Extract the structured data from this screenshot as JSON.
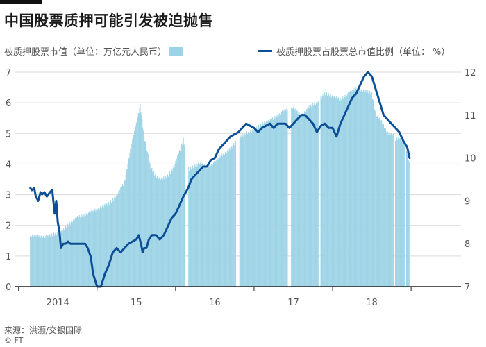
{
  "header": {
    "title": "中国股票质押可能引发被迫抛售"
  },
  "legend": {
    "bars_label": "被质押股票市值（单位：万亿元人民币）",
    "line_label": "被质押股票占股票总市值比例（单位：",
    "line_unit": "%）"
  },
  "footer": {
    "source": "来源：洪灏/交银国际",
    "credit": "© FT"
  },
  "colors": {
    "bar": "#9dd3e6",
    "line": "#0d4f96",
    "grid": "#d9d9d9",
    "axis": "#222222"
  },
  "chart_data": {
    "type": "bar+line",
    "title": "中国股票质押可能引发被迫抛售",
    "x_range": [
      2013.6,
      2018.95
    ],
    "x_ticks": [
      {
        "label": "2014",
        "at": 2014.0
      },
      {
        "label": "15",
        "at": 2015.0
      },
      {
        "label": "16",
        "at": 2016.0
      },
      {
        "label": "17",
        "at": 2017.0
      },
      {
        "label": "18",
        "at": 2018.0
      }
    ],
    "x_minor_ticks": [
      2013.5,
      2014.5,
      2015.5,
      2016.5,
      2017.5,
      2018.5
    ],
    "y_left": {
      "label": "被质押股票市值（单位：万亿元人民币）",
      "range": [
        0,
        7
      ],
      "ticks": [
        0,
        1,
        2,
        3,
        4,
        5,
        6,
        7
      ]
    },
    "y_right": {
      "label": "被质押股票占股票总市值比例（单位：%）",
      "range": [
        7,
        12
      ],
      "ticks": [
        7,
        8,
        9,
        10,
        11,
        12
      ]
    },
    "grid": true,
    "series": [
      {
        "name": "被质押股票市值（单位：万亿元人民币）",
        "type": "bar",
        "axis": "left",
        "points": [
          [
            2013.65,
            1.6
          ],
          [
            2013.75,
            1.65
          ],
          [
            2013.85,
            1.62
          ],
          [
            2013.95,
            1.7
          ],
          [
            2014.05,
            1.8
          ],
          [
            2014.15,
            2.05
          ],
          [
            2014.25,
            2.25
          ],
          [
            2014.35,
            2.35
          ],
          [
            2014.45,
            2.45
          ],
          [
            2014.55,
            2.6
          ],
          [
            2014.65,
            2.7
          ],
          [
            2014.75,
            2.95
          ],
          [
            2014.85,
            3.4
          ],
          [
            2014.92,
            4.4
          ],
          [
            2015.0,
            5.3
          ],
          [
            2015.05,
            5.9
          ],
          [
            2015.1,
            4.9
          ],
          [
            2015.18,
            3.9
          ],
          [
            2015.25,
            3.6
          ],
          [
            2015.32,
            3.5
          ],
          [
            2015.4,
            3.6
          ],
          [
            2015.48,
            3.9
          ],
          [
            2015.55,
            4.4
          ],
          [
            2015.6,
            4.8
          ],
          [
            2015.67,
            3.8
          ],
          [
            2015.72,
            3.9
          ],
          [
            2015.8,
            4.0
          ],
          [
            2015.9,
            3.9
          ],
          [
            2016.0,
            4.05
          ],
          [
            2016.1,
            4.3
          ],
          [
            2016.2,
            4.5
          ],
          [
            2016.3,
            4.8
          ],
          [
            2016.4,
            5.0
          ],
          [
            2016.5,
            5.1
          ],
          [
            2016.6,
            5.3
          ],
          [
            2016.7,
            5.4
          ],
          [
            2016.8,
            5.6
          ],
          [
            2016.9,
            5.75
          ],
          [
            2017.0,
            5.8
          ],
          [
            2017.1,
            5.6
          ],
          [
            2017.2,
            5.85
          ],
          [
            2017.3,
            6.0
          ],
          [
            2017.4,
            6.3
          ],
          [
            2017.5,
            6.2
          ],
          [
            2017.6,
            6.1
          ],
          [
            2017.7,
            6.3
          ],
          [
            2017.8,
            6.45
          ],
          [
            2017.9,
            6.4
          ],
          [
            2018.0,
            6.3
          ],
          [
            2018.05,
            5.6
          ],
          [
            2018.12,
            5.4
          ],
          [
            2018.2,
            5.0
          ],
          [
            2018.27,
            4.95
          ],
          [
            2018.3,
            4.8
          ],
          [
            2018.35,
            4.85
          ],
          [
            2018.4,
            4.7
          ],
          [
            2018.44,
            4.5
          ],
          [
            2018.48,
            4.0
          ]
        ],
        "gaps": [
          [
            2015.62,
            2015.66
          ],
          [
            2016.27,
            2016.31
          ],
          [
            2016.93,
            2016.97
          ],
          [
            2017.32,
            2017.35
          ],
          [
            2018.28,
            2018.3
          ],
          [
            2018.42,
            2018.44
          ]
        ]
      },
      {
        "name": "被质押股票占股票总市值比例（单位：%）",
        "type": "line",
        "axis": "right",
        "x": [
          2013.65,
          2013.67,
          2013.7,
          2013.72,
          2013.75,
          2013.78,
          2013.8,
          2013.83,
          2013.86,
          2013.9,
          2013.93,
          2013.96,
          2013.98,
          2014.0,
          2014.02,
          2014.04,
          2014.07,
          2014.1,
          2014.13,
          2014.16,
          2014.18,
          2014.2,
          2014.25,
          2014.3,
          2014.35,
          2014.38,
          2014.42,
          2014.45,
          2014.5,
          2014.55,
          2014.6,
          2014.65,
          2014.7,
          2014.75,
          2014.8,
          2014.85,
          2014.9,
          2014.95,
          2015.0,
          2015.03,
          2015.06,
          2015.08,
          2015.1,
          2015.13,
          2015.16,
          2015.2,
          2015.25,
          2015.3,
          2015.35,
          2015.4,
          2015.45,
          2015.5,
          2015.55,
          2015.6,
          2015.63,
          2015.66,
          2015.7,
          2015.75,
          2015.8,
          2015.85,
          2015.9,
          2015.95,
          2016.0,
          2016.05,
          2016.1,
          2016.15,
          2016.2,
          2016.25,
          2016.3,
          2016.35,
          2016.4,
          2016.45,
          2016.5,
          2016.55,
          2016.6,
          2016.65,
          2016.7,
          2016.75,
          2016.8,
          2016.85,
          2016.9,
          2016.95,
          2017.0,
          2017.05,
          2017.1,
          2017.15,
          2017.2,
          2017.25,
          2017.3,
          2017.35,
          2017.4,
          2017.45,
          2017.5,
          2017.55,
          2017.6,
          2017.65,
          2017.7,
          2017.75,
          2017.8,
          2017.85,
          2017.9,
          2017.95,
          2018.0,
          2018.05,
          2018.1,
          2018.15,
          2018.2,
          2018.25,
          2018.3,
          2018.35,
          2018.4,
          2018.45,
          2018.48
        ],
        "values": [
          9.3,
          9.25,
          9.3,
          9.1,
          9.0,
          9.2,
          9.15,
          9.2,
          9.1,
          9.2,
          9.25,
          8.7,
          9.0,
          8.5,
          8.3,
          7.9,
          8.0,
          8.0,
          8.05,
          8.0,
          8.0,
          8.0,
          8.0,
          8.0,
          8.0,
          7.9,
          7.7,
          7.3,
          7.0,
          7.0,
          7.3,
          7.5,
          7.8,
          7.9,
          7.8,
          7.9,
          8.0,
          8.05,
          8.1,
          8.2,
          8.0,
          7.8,
          7.9,
          7.9,
          8.1,
          8.2,
          8.2,
          8.1,
          8.2,
          8.4,
          8.6,
          8.7,
          8.9,
          9.1,
          9.2,
          9.3,
          9.5,
          9.6,
          9.7,
          9.8,
          9.8,
          9.95,
          10.0,
          10.2,
          10.3,
          10.4,
          10.5,
          10.55,
          10.6,
          10.7,
          10.8,
          10.75,
          10.7,
          10.6,
          10.7,
          10.75,
          10.8,
          10.7,
          10.8,
          10.8,
          10.8,
          10.7,
          10.8,
          10.9,
          11.0,
          11.0,
          10.9,
          10.8,
          10.6,
          10.75,
          10.8,
          10.7,
          10.7,
          10.5,
          10.8,
          11.0,
          11.2,
          11.4,
          11.5,
          11.7,
          11.9,
          12.0,
          11.9,
          11.6,
          11.3,
          11.0,
          10.9,
          10.8,
          10.7,
          10.6,
          10.4,
          10.25,
          10.0
        ]
      }
    ]
  }
}
